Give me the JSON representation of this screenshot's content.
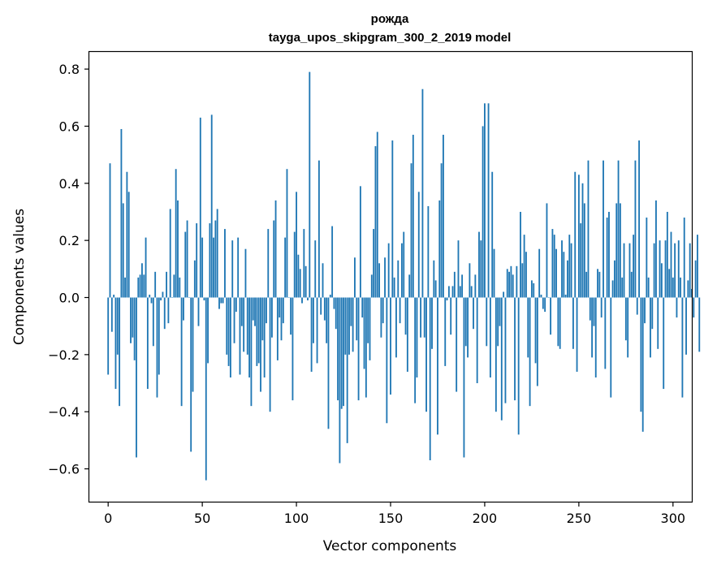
{
  "chart_data": {
    "type": "bar",
    "title": "рожда",
    "subtitle": "tayga_upos_skipgram_300_2_2019 model",
    "xlabel": "Vector components",
    "ylabel": "Components values",
    "xlim": [
      -10,
      310
    ],
    "ylim": [
      -0.715,
      0.86
    ],
    "xticks": [
      0,
      50,
      100,
      150,
      200,
      250,
      300
    ],
    "xtick_labels": [
      "0",
      "50",
      "100",
      "150",
      "200",
      "250",
      "300"
    ],
    "yticks": [
      -0.6,
      -0.4,
      -0.2,
      0.0,
      0.2,
      0.4,
      0.6,
      0.8
    ],
    "ytick_labels": [
      "−0.6",
      "−0.4",
      "−0.2",
      "0.0",
      "0.2",
      "0.4",
      "0.6",
      "0.8"
    ],
    "grid": false,
    "bar_color": "#1f77b4",
    "values": [
      -0.27,
      0.47,
      -0.12,
      0.01,
      -0.32,
      -0.2,
      -0.38,
      0.59,
      0.33,
      0.07,
      0.44,
      0.37,
      -0.16,
      -0.14,
      -0.22,
      -0.56,
      0.07,
      0.08,
      0.12,
      0.08,
      0.21,
      -0.32,
      0.01,
      -0.02,
      -0.17,
      0.09,
      -0.35,
      -0.27,
      -0.01,
      0.02,
      -0.11,
      0.09,
      -0.09,
      0.31,
      0.0,
      0.08,
      0.45,
      0.34,
      0.07,
      -0.38,
      -0.08,
      0.23,
      0.27,
      0.0,
      -0.54,
      -0.33,
      0.13,
      0.26,
      -0.1,
      0.63,
      0.21,
      -0.01,
      -0.64,
      -0.23,
      0.26,
      0.64,
      0.21,
      0.27,
      0.31,
      -0.04,
      -0.02,
      -0.02,
      0.24,
      -0.2,
      -0.24,
      -0.28,
      0.2,
      -0.16,
      -0.05,
      0.21,
      -0.27,
      -0.1,
      -0.19,
      0.17,
      -0.2,
      -0.28,
      -0.38,
      -0.08,
      -0.1,
      -0.24,
      -0.23,
      -0.33,
      -0.15,
      -0.28,
      -0.09,
      0.24,
      -0.4,
      -0.14,
      0.27,
      0.34,
      -0.22,
      -0.07,
      -0.15,
      -0.09,
      0.21,
      0.45,
      0.0,
      -0.13,
      -0.36,
      0.23,
      0.37,
      0.15,
      0.1,
      -0.02,
      0.24,
      0.11,
      -0.01,
      0.79,
      -0.26,
      -0.16,
      0.2,
      -0.23,
      0.48,
      -0.06,
      0.12,
      -0.08,
      -0.16,
      -0.46,
      0.01,
      0.25,
      -0.04,
      -0.11,
      -0.36,
      -0.58,
      -0.39,
      -0.38,
      -0.2,
      -0.51,
      -0.2,
      -0.1,
      -0.19,
      0.14,
      -0.15,
      -0.36,
      0.39,
      -0.07,
      -0.25,
      -0.35,
      -0.16,
      -0.22,
      0.08,
      0.24,
      0.53,
      0.58,
      0.12,
      -0.14,
      -0.09,
      0.14,
      -0.44,
      0.19,
      -0.34,
      0.55,
      0.07,
      -0.21,
      0.13,
      -0.09,
      0.19,
      0.23,
      -0.13,
      -0.26,
      0.08,
      0.47,
      0.57,
      -0.37,
      -0.28,
      0.37,
      -0.14,
      0.73,
      -0.14,
      -0.4,
      0.32,
      -0.57,
      -0.18,
      0.13,
      0.06,
      -0.48,
      0.34,
      0.47,
      0.57,
      -0.24,
      -0.01,
      0.04,
      -0.13,
      0.04,
      0.09,
      -0.33,
      0.2,
      0.04,
      0.08,
      -0.56,
      -0.17,
      -0.21,
      0.12,
      0.04,
      -0.11,
      0.08,
      -0.3,
      0.23,
      0.2,
      0.6,
      0.68,
      -0.17,
      0.68,
      -0.28,
      0.44,
      0.17,
      -0.4,
      -0.17,
      -0.1,
      -0.43,
      0.02,
      -0.37,
      0.1,
      0.09,
      0.11,
      0.08,
      -0.36,
      0.11,
      -0.48,
      0.3,
      0.12,
      0.22,
      0.16,
      -0.21,
      -0.38,
      0.06,
      0.05,
      -0.23,
      -0.31,
      0.17,
      0.01,
      -0.04,
      -0.05,
      0.33,
      0.0,
      -0.13,
      0.24,
      0.22,
      0.17,
      -0.17,
      -0.18,
      0.2,
      0.16,
      0.01,
      0.13,
      0.22,
      0.19,
      -0.18,
      0.44,
      -0.26,
      0.43,
      0.26,
      0.4,
      0.33,
      0.09,
      0.48,
      -0.08,
      -0.21,
      -0.1,
      -0.28,
      0.1,
      0.09,
      -0.07,
      0.48,
      -0.25,
      0.28,
      0.3,
      -0.35,
      0.06,
      0.13,
      0.33,
      0.48,
      0.33,
      0.07,
      0.19,
      -0.15,
      -0.21,
      0.19,
      0.09,
      0.22,
      0.48,
      -0.06,
      0.55,
      -0.4,
      -0.47,
      -0.09,
      0.28,
      0.07,
      -0.21,
      -0.11,
      0.19,
      0.34,
      -0.18,
      0.2,
      0.12,
      -0.32,
      0.2,
      0.3,
      0.1,
      0.23,
      0.07,
      0.19,
      -0.07,
      0.2,
      0.07,
      -0.35,
      0.28,
      -0.2,
      0.06,
      0.19,
      0.03,
      -0.07,
      0.13,
      0.22,
      -0.19
    ]
  }
}
